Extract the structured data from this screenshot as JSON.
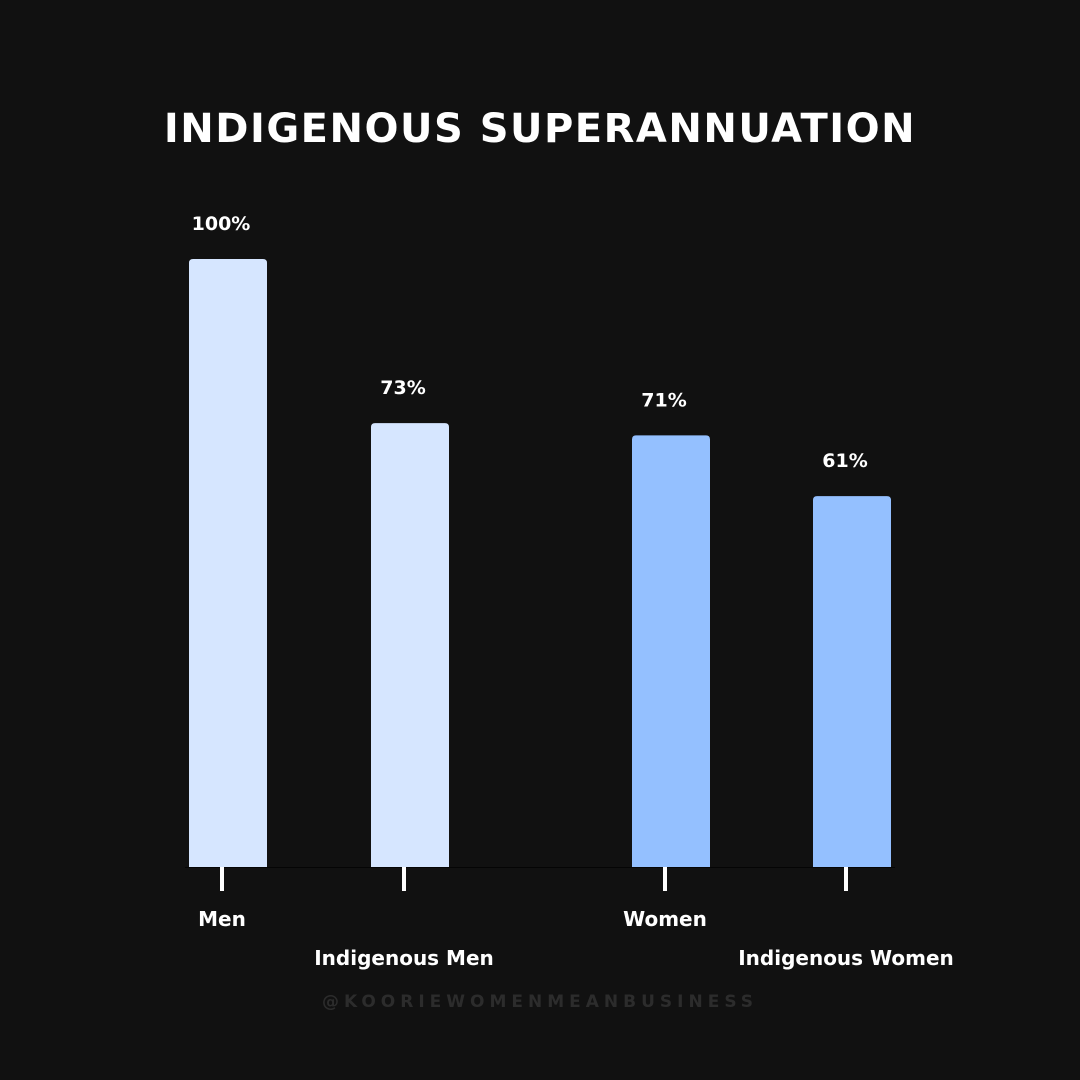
{
  "chart_data": {
    "type": "bar",
    "title": "INDIGENOUS SUPERANNUATION",
    "categories": [
      "Men",
      "Indigenous Men",
      "Women",
      "Indigenous Women"
    ],
    "values": [
      100,
      73,
      71,
      61
    ],
    "data_labels": [
      "100%",
      "73%",
      "71%",
      "61%"
    ],
    "colors": [
      "#d6e6ff",
      "#d6e6ff",
      "#94c0ff",
      "#94c0ff"
    ],
    "ylim": [
      0,
      100
    ],
    "grid": false,
    "xlabel": "",
    "ylabel": ""
  },
  "watermark": "@KOORIEWOMENMEANBUSINESS",
  "background": "#111111"
}
